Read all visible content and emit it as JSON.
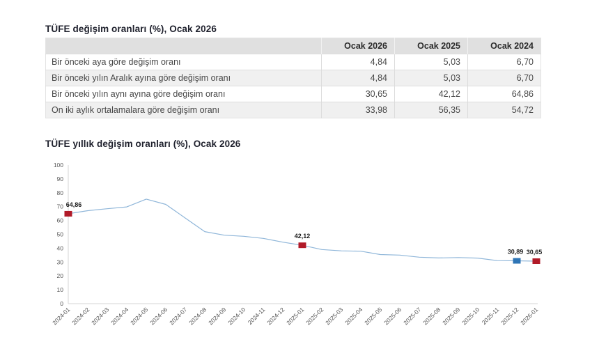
{
  "table_section": {
    "title": "TÜFE değişim oranları (%), Ocak 2026",
    "columns": [
      "",
      "Ocak 2026",
      "Ocak 2025",
      "Ocak 2024"
    ],
    "rows": [
      {
        "label": "Bir önceki aya göre değişim oranı",
        "values": [
          "4,84",
          "5,03",
          "6,70"
        ]
      },
      {
        "label": "Bir önceki yılın Aralık ayına göre değişim oranı",
        "values": [
          "4,84",
          "5,03",
          "6,70"
        ]
      },
      {
        "label": "Bir önceki yılın aynı ayına göre değişim oranı",
        "values": [
          "30,65",
          "42,12",
          "64,86"
        ]
      },
      {
        "label": "On iki aylık ortalamalara göre değişim oranı",
        "values": [
          "33,98",
          "56,35",
          "54,72"
        ]
      }
    ]
  },
  "chart_section": {
    "title": "TÜFE yıllık değişim oranları (%), Ocak 2026"
  },
  "chart_data": {
    "type": "line",
    "title": "TÜFE yıllık değişim oranları (%), Ocak 2026",
    "x": [
      "2024-01",
      "2024-02",
      "2024-03",
      "2024-04",
      "2024-05",
      "2024-06",
      "2024-07",
      "2024-08",
      "2024-09",
      "2024-10",
      "2024-11",
      "2024-12",
      "2025-01",
      "2025-02",
      "2025-03",
      "2025-04",
      "2025-05",
      "2025-06",
      "2025-07",
      "2025-08",
      "2025-09",
      "2025-10",
      "2025-11",
      "2025-12",
      "2026-01"
    ],
    "values": [
      64.86,
      67.07,
      68.5,
      69.8,
      75.45,
      71.6,
      61.78,
      51.97,
      49.38,
      48.58,
      47.09,
      44.38,
      42.12,
      39.05,
      38.1,
      37.86,
      35.41,
      35.05,
      33.52,
      32.95,
      33.29,
      32.87,
      31.07,
      30.89,
      30.65
    ],
    "ylim": [
      0,
      100
    ],
    "ytick_step": 10,
    "grid": false,
    "legend": false,
    "line_color": "#8fb6d9",
    "axis_color": "#d6d6d6",
    "annotated_points": [
      {
        "x": "2024-01",
        "value": 64.86,
        "label": "64,86",
        "marker_color": "#b11a28",
        "label_dx": 8
      },
      {
        "x": "2025-01",
        "value": 42.12,
        "label": "42,12",
        "marker_color": "#b11a28",
        "label_dx": 0
      },
      {
        "x": "2025-12",
        "value": 30.89,
        "label": "30,89",
        "marker_color": "#2e75b6",
        "label_dx": -2
      },
      {
        "x": "2026-01",
        "value": 30.65,
        "label": "30,65",
        "marker_color": "#b11a28",
        "label_dx": -3
      }
    ]
  }
}
